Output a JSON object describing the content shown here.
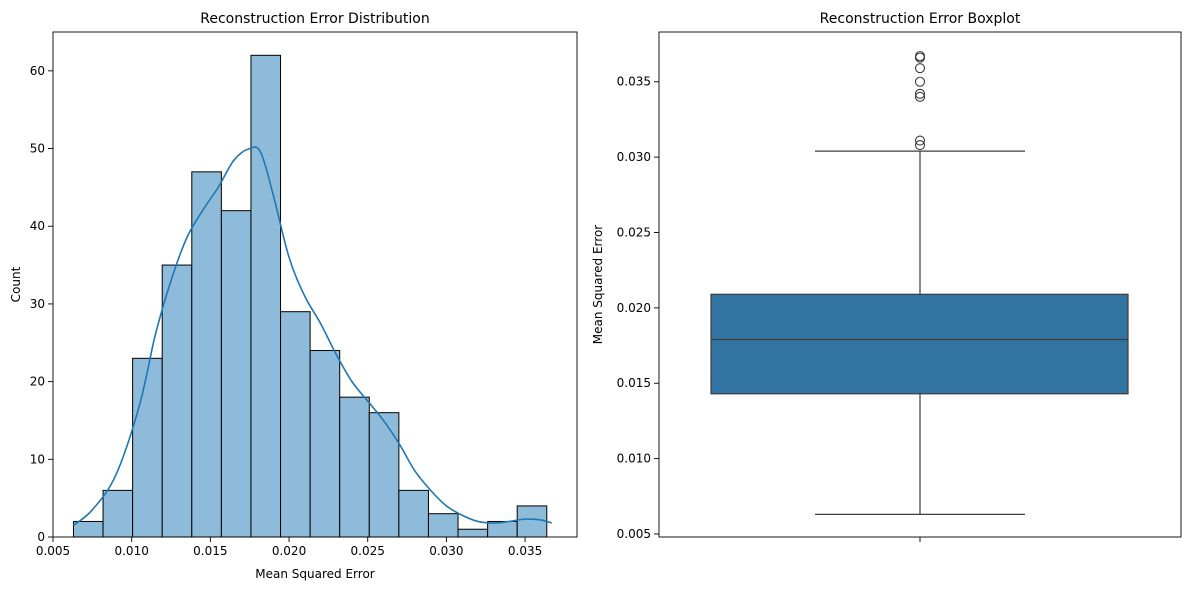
{
  "chart_data": [
    {
      "type": "bar",
      "title": "Reconstruction Error Distribution",
      "xlabel": "Mean Squared Error",
      "ylabel": "Count",
      "xlim": [
        0.005,
        0.0383
      ],
      "ylim": [
        0,
        65
      ],
      "xticks": [
        "0.005",
        "0.010",
        "0.015",
        "0.020",
        "0.025",
        "0.030",
        "0.035"
      ],
      "xtick_values": [
        0.005,
        0.01,
        0.015,
        0.02,
        0.025,
        0.03,
        0.035
      ],
      "yticks": [
        "0",
        "10",
        "20",
        "30",
        "40",
        "50",
        "60"
      ],
      "ytick_values": [
        0,
        10,
        20,
        30,
        40,
        50,
        60
      ],
      "bins": {
        "edges": [
          0.0063,
          0.00818,
          0.01006,
          0.01194,
          0.01382,
          0.0157,
          0.01758,
          0.01946,
          0.02134,
          0.02322,
          0.0251,
          0.02698,
          0.02886,
          0.03074,
          0.03262,
          0.0345,
          0.03638
        ],
        "counts": [
          2,
          6,
          23,
          35,
          47,
          42,
          62,
          29,
          24,
          18,
          16,
          6,
          3,
          1,
          2,
          4
        ]
      },
      "kde": {
        "x": [
          0.0063,
          0.0075,
          0.009,
          0.0105,
          0.0115,
          0.0125,
          0.0135,
          0.0145,
          0.0155,
          0.0165,
          0.0175,
          0.0182,
          0.019,
          0.02,
          0.021,
          0.022,
          0.023,
          0.024,
          0.025,
          0.026,
          0.027,
          0.028,
          0.029,
          0.03,
          0.031,
          0.032,
          0.033,
          0.034,
          0.035,
          0.036,
          0.0367
        ],
        "y": [
          1.5,
          3.5,
          8,
          17,
          26,
          33,
          38.5,
          42,
          45,
          48.5,
          50,
          49.5,
          44,
          36,
          31,
          27.5,
          23.5,
          20,
          17.5,
          15,
          12,
          8.5,
          6,
          4,
          2.8,
          2,
          1.8,
          2.0,
          2.3,
          2.2,
          1.8
        ]
      },
      "colors": {
        "bar_fill": "#8ebbd9",
        "bar_edge": "#000000",
        "kde": "#1f77b4"
      },
      "grid": false
    },
    {
      "type": "boxplot",
      "title": "Reconstruction Error Boxplot",
      "ylabel": "Mean Squared Error",
      "ylim": [
        0.0048,
        0.0383
      ],
      "yticks": [
        "0.005",
        "0.010",
        "0.015",
        "0.020",
        "0.025",
        "0.030",
        "0.035"
      ],
      "ytick_values": [
        0.005,
        0.01,
        0.015,
        0.02,
        0.025,
        0.03,
        0.035
      ],
      "box": {
        "whisker_low": 0.0063,
        "q1": 0.0143,
        "median": 0.0179,
        "q3": 0.0209,
        "whisker_high": 0.0304
      },
      "outliers": [
        0.0308,
        0.0311,
        0.034,
        0.0342,
        0.035,
        0.0359,
        0.0366,
        0.0367
      ],
      "colors": {
        "box_fill": "#3274a1",
        "line": "#3d3d3d"
      },
      "grid": false
    }
  ]
}
